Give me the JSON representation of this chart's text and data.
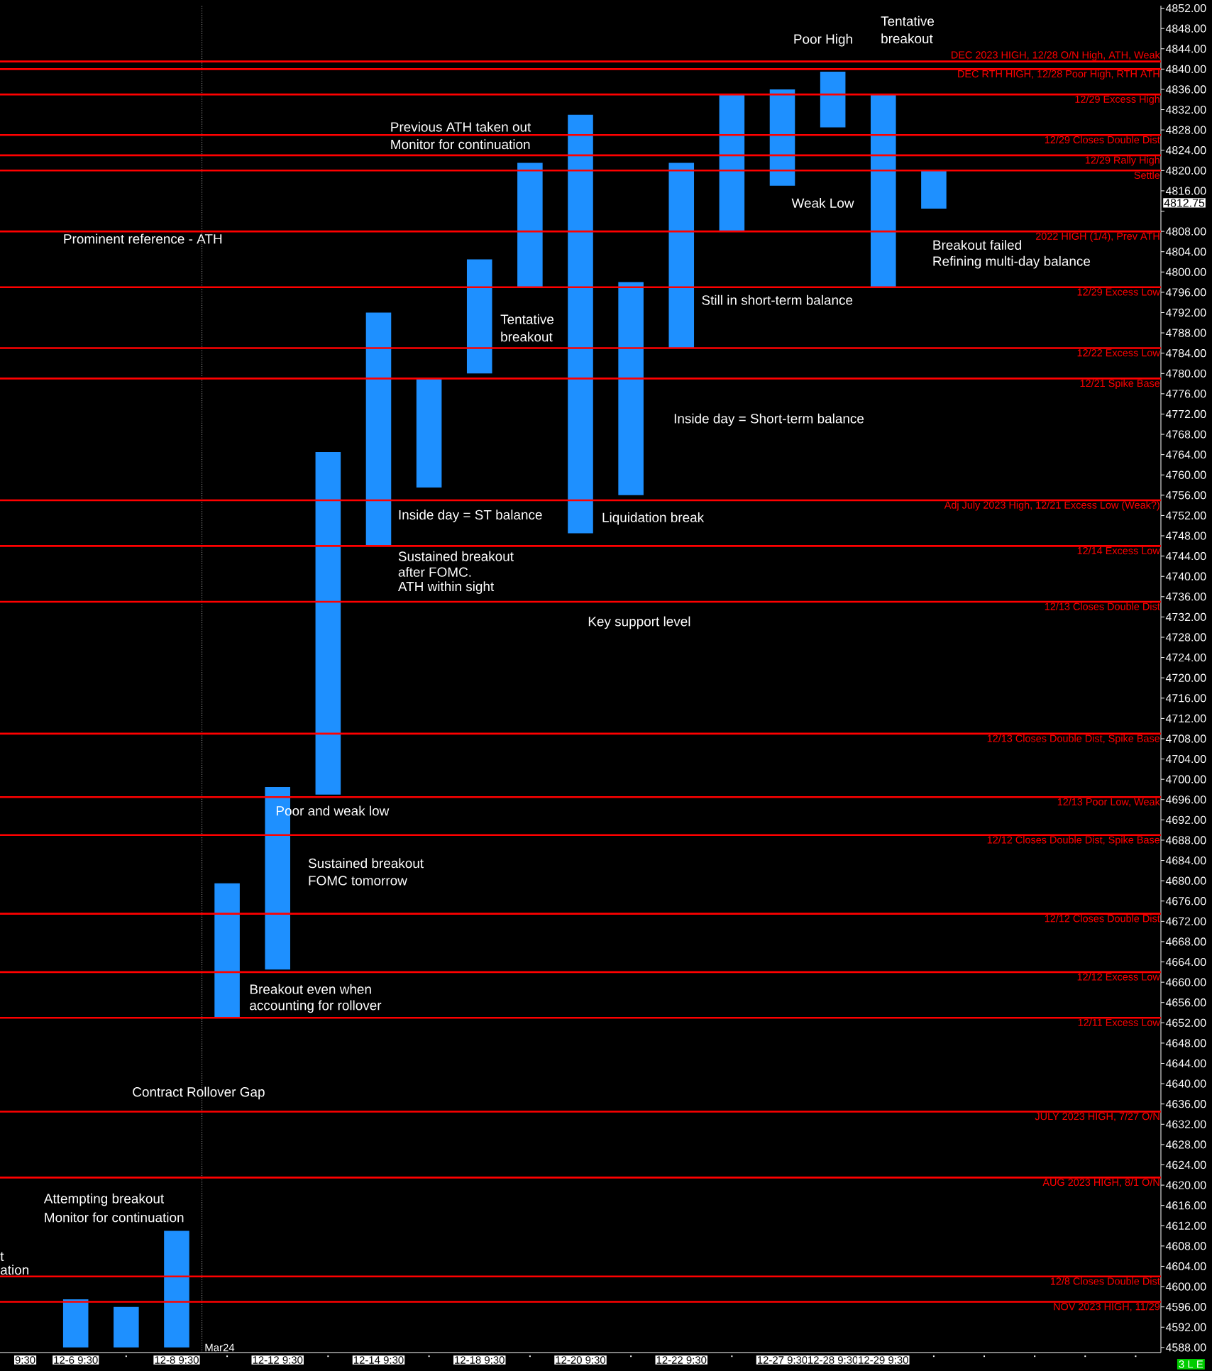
{
  "chart_data": {
    "type": "bar",
    "categories": [
      "9:30",
      "12-6 9:30",
      null,
      "12-8 9:30",
      null,
      "12-12 9:30",
      null,
      "12-14 9:30",
      null,
      "12-18 9:30",
      null,
      "12-20 9:30",
      null,
      "12-22 9:30",
      null,
      "12-27 9:30",
      "12-28 9:30",
      "12-29 9:30",
      null,
      null,
      null,
      null,
      null
    ],
    "base": [
      null,
      4588,
      4588,
      4588,
      4653,
      4662.5,
      4697,
      4746,
      4757.5,
      4780,
      4797,
      4748.5,
      4756,
      4785,
      4808,
      4817,
      4828.5,
      4797,
      4812.5,
      null,
      null,
      null,
      null
    ],
    "values": [
      null,
      9.5,
      8,
      23,
      26.5,
      36,
      67.5,
      46,
      21.5,
      22.5,
      24.5,
      82.5,
      42,
      36.5,
      27,
      19,
      11,
      38,
      7.5,
      null,
      null,
      null,
      null
    ],
    "color": "#1e90ff",
    "ylim": [
      4587,
      4852.5
    ],
    "yticks": [
      {
        "value": 4588,
        "label": "4588.00"
      },
      {
        "value": 4592,
        "label": "4592.00"
      },
      {
        "value": 4596,
        "label": "4596.00"
      },
      {
        "value": 4600,
        "label": "4600.00"
      },
      {
        "value": 4604,
        "label": "4604.00"
      },
      {
        "value": 4608,
        "label": "4608.00"
      },
      {
        "value": 4612,
        "label": "4612.00"
      },
      {
        "value": 4616,
        "label": "4616.00"
      },
      {
        "value": 4620,
        "label": "4620.00"
      },
      {
        "value": 4624,
        "label": "4624.00"
      },
      {
        "value": 4628,
        "label": "4628.00"
      },
      {
        "value": 4632,
        "label": "4632.00"
      },
      {
        "value": 4636,
        "label": "4636.00"
      },
      {
        "value": 4640,
        "label": "4640.00"
      },
      {
        "value": 4644,
        "label": "4644.00"
      },
      {
        "value": 4648,
        "label": "4648.00"
      },
      {
        "value": 4652,
        "label": "4652.00"
      },
      {
        "value": 4656,
        "label": "4656.00"
      },
      {
        "value": 4660,
        "label": "4660.00"
      },
      {
        "value": 4664,
        "label": "4664.00"
      },
      {
        "value": 4668,
        "label": "4668.00"
      },
      {
        "value": 4672,
        "label": "4672.00"
      },
      {
        "value": 4676,
        "label": "4676.00"
      },
      {
        "value": 4680,
        "label": "4680.00"
      },
      {
        "value": 4684,
        "label": "4684.00"
      },
      {
        "value": 4688,
        "label": "4688.00"
      },
      {
        "value": 4692,
        "label": "4692.00"
      },
      {
        "value": 4696,
        "label": "4696.00"
      },
      {
        "value": 4700,
        "label": "4700.00"
      },
      {
        "value": 4704,
        "label": "4704.00"
      },
      {
        "value": 4708,
        "label": "4708.00"
      },
      {
        "value": 4712,
        "label": "4712.00"
      },
      {
        "value": 4716,
        "label": "4716.00"
      },
      {
        "value": 4720,
        "label": "4720.00"
      },
      {
        "value": 4724,
        "label": "4724.00"
      },
      {
        "value": 4728,
        "label": "4728.00"
      },
      {
        "value": 4732,
        "label": "4732.00"
      },
      {
        "value": 4736,
        "label": "4736.00"
      },
      {
        "value": 4740,
        "label": "4740.00"
      },
      {
        "value": 4744,
        "label": "4744.00"
      },
      {
        "value": 4748,
        "label": "4748.00"
      },
      {
        "value": 4752,
        "label": "4752.00"
      },
      {
        "value": 4756,
        "label": "4756.00"
      },
      {
        "value": 4760,
        "label": "4760.00"
      },
      {
        "value": 4764,
        "label": "4764.00"
      },
      {
        "value": 4768,
        "label": "4768.00"
      },
      {
        "value": 4772,
        "label": "4772.00"
      },
      {
        "value": 4776,
        "label": "4776.00"
      },
      {
        "value": 4780,
        "label": "4780.00"
      },
      {
        "value": 4784,
        "label": "4784.00"
      },
      {
        "value": 4788,
        "label": "4788.00"
      },
      {
        "value": 4792,
        "label": "4792.00"
      },
      {
        "value": 4796,
        "label": "4796.00"
      },
      {
        "value": 4800,
        "label": "4800.00"
      },
      {
        "value": 4804,
        "label": "4804.00"
      },
      {
        "value": 4808,
        "label": "4808.00"
      },
      {
        "value": 4812,
        "label": null
      },
      {
        "value": 4816,
        "label": "4816.00"
      },
      {
        "value": 4820,
        "label": "4820.00"
      },
      {
        "value": 4824,
        "label": "4824.00"
      },
      {
        "value": 4828,
        "label": "4828.00"
      },
      {
        "value": 4832,
        "label": "4832.00"
      },
      {
        "value": 4836,
        "label": "4836.00"
      },
      {
        "value": 4840,
        "label": "4840.00"
      },
      {
        "value": 4844,
        "label": "4844.00"
      },
      {
        "value": 4848,
        "label": "4848.00"
      },
      {
        "value": 4852,
        "label": "4852.00"
      }
    ],
    "ref_lines": [
      {
        "axis": "y",
        "value": 4841.5,
        "label": "DEC 2023 HIGH, 12/28 O/N High, ATH, Weak",
        "color": "#ff0000"
      },
      {
        "axis": "y",
        "value": 4840,
        "label": "DEC RTH HIGH, 12/28 Poor High, RTH ATH",
        "color": "#ff0000"
      },
      {
        "axis": "y",
        "value": 4835,
        "label": "12/29 Excess High",
        "color": "#ff0000"
      },
      {
        "axis": "y",
        "value": 4827,
        "label": "12/29 Closes Double Dist",
        "color": "#ff0000"
      },
      {
        "axis": "y",
        "value": 4823,
        "label": "12/29 Rally High",
        "color": "#ff0000"
      },
      {
        "axis": "y",
        "value": 4820,
        "label": "Settle",
        "color": "#ff0000"
      },
      {
        "axis": "y",
        "value": 4808,
        "label": "2022 HIGH (1/4), Prev ATH",
        "color": "#ff0000"
      },
      {
        "axis": "y",
        "value": 4797,
        "label": "12/29 Excess Low",
        "color": "#ff0000"
      },
      {
        "axis": "y",
        "value": 4785,
        "label": "12/22 Excess Low",
        "color": "#ff0000"
      },
      {
        "axis": "y",
        "value": 4779,
        "label": "12/21 Spike Base",
        "color": "#ff0000"
      },
      {
        "axis": "y",
        "value": 4755,
        "label": "Adj July 2023 High, 12/21 Excess Low (Weak?)",
        "color": "#ff0000"
      },
      {
        "axis": "y",
        "value": 4746,
        "label": "12/14 Excess Low",
        "color": "#ff0000"
      },
      {
        "axis": "y",
        "value": 4735,
        "label": "12/13 Closes Double Dist",
        "color": "#ff0000"
      },
      {
        "axis": "y",
        "value": 4709,
        "label": "12/13 Closes Double Dist, Spike Base",
        "color": "#ff0000"
      },
      {
        "axis": "y",
        "value": 4696.5,
        "label": "12/13 Poor Low, Weak",
        "color": "#ff0000"
      },
      {
        "axis": "y",
        "value": 4689,
        "label": "12/12 Closes Double Dist, Spike Base",
        "color": "#ff0000"
      },
      {
        "axis": "y",
        "value": 4673.5,
        "label": "12/12 Closes Double Dist",
        "color": "#ff0000"
      },
      {
        "axis": "y",
        "value": 4662,
        "label": "12/12 Excess Low",
        "color": "#ff0000"
      },
      {
        "axis": "y",
        "value": 4653,
        "label": "12/11 Excess Low",
        "color": "#ff0000"
      },
      {
        "axis": "y",
        "value": 4634.5,
        "label": "JULY 2023 HIGH, 7/27 O/N",
        "color": "#ff0000"
      },
      {
        "axis": "y",
        "value": 4621.5,
        "label": "AUG 2023 HIGH, 8/1 O/N",
        "color": "#ff0000"
      },
      {
        "axis": "y",
        "value": 4602,
        "label": "12/8 Closes Double Dist",
        "color": "#ff0000"
      },
      {
        "axis": "y",
        "value": 4597,
        "label": "NOV 2023 HIGH, 11/29",
        "color": "#ff0000"
      }
    ],
    "annotations": [
      "Poor High",
      "Tentative",
      "breakout",
      "Previous ATH taken out",
      "Monitor for continuation",
      "Weak Low",
      "Prominent reference - ATH",
      "Breakout failed",
      "Refining multi-day balance",
      "Still in short-term balance",
      "Tentative",
      "breakout",
      "Inside day = Short-term balance",
      "Inside day = ST balance",
      "Liquidation break",
      "Sustained breakout",
      "after FOMC.",
      "ATH within sight",
      "Key support level",
      "Poor and weak low",
      "Sustained breakout",
      "FOMC tomorrow",
      "Breakout even when",
      "accounting for rollover",
      "Contract Rollover Gap",
      "Attempting breakout",
      "Monitor for continuation",
      "t",
      "ation",
      "4812.75",
      "3 L E",
      "Mar24"
    ]
  }
}
